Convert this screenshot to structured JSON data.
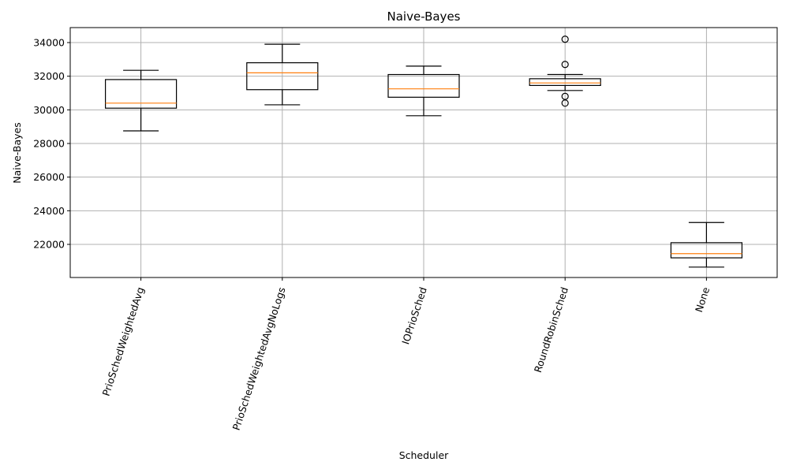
{
  "chart_data": {
    "type": "box",
    "title": "Naive-Bayes",
    "xlabel": "Scheduler",
    "ylabel": "Naive-Bayes",
    "ylim": [
      20000,
      34800
    ],
    "yticks": [
      22000,
      24000,
      26000,
      28000,
      30000,
      32000,
      34000
    ],
    "grid": true,
    "categories": [
      "PrioSchedWeightedAvg",
      "PrioSchedWeightedAvgNoLogs",
      "IOPrioSched",
      "RoundRobinSched",
      "None"
    ],
    "boxes": [
      {
        "whisker_low": 28750,
        "q1": 30100,
        "median": 30400,
        "q3": 31800,
        "whisker_high": 32350,
        "fliers": []
      },
      {
        "whisker_low": 30300,
        "q1": 31200,
        "median": 32200,
        "q3": 32800,
        "whisker_high": 33900,
        "fliers": []
      },
      {
        "whisker_low": 29650,
        "q1": 30750,
        "median": 31250,
        "q3": 32100,
        "whisker_high": 32600,
        "fliers": []
      },
      {
        "whisker_low": 31150,
        "q1": 31450,
        "median": 31600,
        "q3": 31850,
        "whisker_high": 32100,
        "fliers": [
          34200,
          32700,
          30800,
          30400
        ]
      },
      {
        "whisker_low": 20650,
        "q1": 21200,
        "median": 21450,
        "q3": 22100,
        "whisker_high": 23300,
        "fliers": []
      }
    ]
  },
  "colors": {
    "box": "#000000",
    "median": "#ff7f0e",
    "grid": "#b0b0b0"
  }
}
